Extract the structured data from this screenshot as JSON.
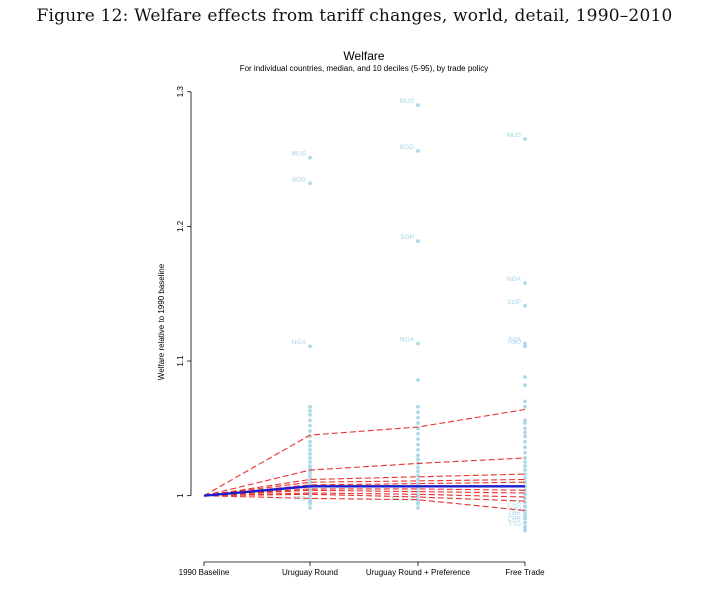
{
  "caption": "Figure 12: Welfare effects from tariff changes, world, detail, 1990–2010",
  "colors": {
    "scatter": "#add8e6",
    "label": "#a7d4e6",
    "decile": "#e8322e",
    "median": "#1b1bd0",
    "axis": "#000000"
  },
  "chart_data": {
    "type": "line",
    "title": "Welfare",
    "subtitle": "For individual countries, median, and 10 deciles (5-95), by trade policy",
    "xlabel": "",
    "ylabel": "Welfare relative to 1990 baseline",
    "categories": [
      "1990 Baseline",
      "Uruguay Round",
      "Uruguay Round + Preference",
      "Free Trade"
    ],
    "ylim": [
      0.95,
      1.305
    ],
    "yticks": [
      1,
      1.1,
      1.2,
      1.3
    ],
    "ytick_labels": [
      "1",
      "1.1",
      "1.2",
      "1.3"
    ],
    "median": {
      "name": "median",
      "values": [
        1.0,
        1.007,
        1.007,
        1.007
      ]
    },
    "deciles": [
      {
        "name": "p95",
        "values": [
          1.0,
          1.045,
          1.051,
          1.064
        ]
      },
      {
        "name": "p90",
        "values": [
          1.0,
          1.019,
          1.024,
          1.028
        ]
      },
      {
        "name": "p80",
        "values": [
          1.0,
          1.012,
          1.014,
          1.016
        ]
      },
      {
        "name": "p70",
        "values": [
          1.0,
          1.01,
          1.011,
          1.012
        ]
      },
      {
        "name": "p60",
        "values": [
          1.0,
          1.008,
          1.009,
          1.01
        ]
      },
      {
        "name": "p40",
        "values": [
          1.0,
          1.005,
          1.005,
          1.004
        ]
      },
      {
        "name": "p30",
        "values": [
          1.0,
          1.004,
          1.003,
          1.002
        ]
      },
      {
        "name": "p20",
        "values": [
          1.0,
          1.002,
          1.001,
          0.999
        ]
      },
      {
        "name": "p10",
        "values": [
          1.0,
          1.001,
          0.999,
          0.996
        ]
      },
      {
        "name": "p5",
        "values": [
          1.0,
          0.998,
          0.997,
          0.989
        ]
      }
    ],
    "scatter": [
      {
        "category": 1,
        "values": [
          1.066,
          1.063,
          1.06,
          1.056,
          1.052,
          1.048,
          1.044,
          1.04,
          1.037,
          1.034,
          1.031,
          1.028,
          1.025,
          1.022,
          1.02,
          1.018,
          1.016,
          1.014,
          1.012,
          1.01,
          1.008,
          1.006,
          1.004,
          1.002,
          1.0,
          0.998,
          0.996,
          0.994,
          0.991
        ]
      },
      {
        "category": 2,
        "values": [
          1.086,
          1.066,
          1.062,
          1.058,
          1.054,
          1.05,
          1.046,
          1.042,
          1.038,
          1.034,
          1.03,
          1.027,
          1.024,
          1.021,
          1.018,
          1.015,
          1.012,
          1.009,
          1.006,
          1.003,
          1.0,
          0.997,
          0.994,
          0.991
        ]
      },
      {
        "category": 3,
        "values": [
          1.088,
          1.082,
          1.07,
          1.066,
          1.056,
          1.054,
          1.05,
          1.047,
          1.044,
          1.04,
          1.036,
          1.032,
          1.028,
          1.025,
          1.022,
          1.019,
          1.016,
          1.013,
          1.01,
          1.007,
          1.004,
          1.001,
          0.998,
          0.995,
          0.992,
          0.989,
          0.986,
          0.983,
          0.98,
          0.977,
          0.974
        ]
      }
    ],
    "labeled_points": [
      {
        "category": 1,
        "label": "MUS",
        "value": 1.251
      },
      {
        "category": 1,
        "label": "BGD",
        "value": 1.232
      },
      {
        "category": 1,
        "label": "NGA",
        "value": 1.111
      },
      {
        "category": 1,
        "label": "TTO",
        "value": 0.995
      },
      {
        "category": 2,
        "label": "MUS",
        "value": 1.29
      },
      {
        "category": 2,
        "label": "BGD",
        "value": 1.256
      },
      {
        "category": 2,
        "label": "SGP",
        "value": 1.189
      },
      {
        "category": 2,
        "label": "NGA",
        "value": 1.113
      },
      {
        "category": 2,
        "label": "IRLTTO",
        "value": 0.995
      },
      {
        "category": 3,
        "label": "MUS",
        "value": 1.265
      },
      {
        "category": 3,
        "label": "NGA",
        "value": 1.158
      },
      {
        "category": 3,
        "label": "SGP",
        "value": 1.141
      },
      {
        "category": 3,
        "label": "TZA",
        "value": 1.113
      },
      {
        "category": 3,
        "label": "TGO",
        "value": 1.111
      },
      {
        "category": 3,
        "label": "TZA",
        "value": 0.992
      },
      {
        "category": 3,
        "label": "TGO",
        "value": 0.988
      },
      {
        "category": 3,
        "label": "LBR",
        "value": 0.984
      },
      {
        "category": 3,
        "label": "ZMB",
        "value": 0.98
      },
      {
        "category": 3,
        "label": "TTO",
        "value": 0.976
      }
    ]
  }
}
